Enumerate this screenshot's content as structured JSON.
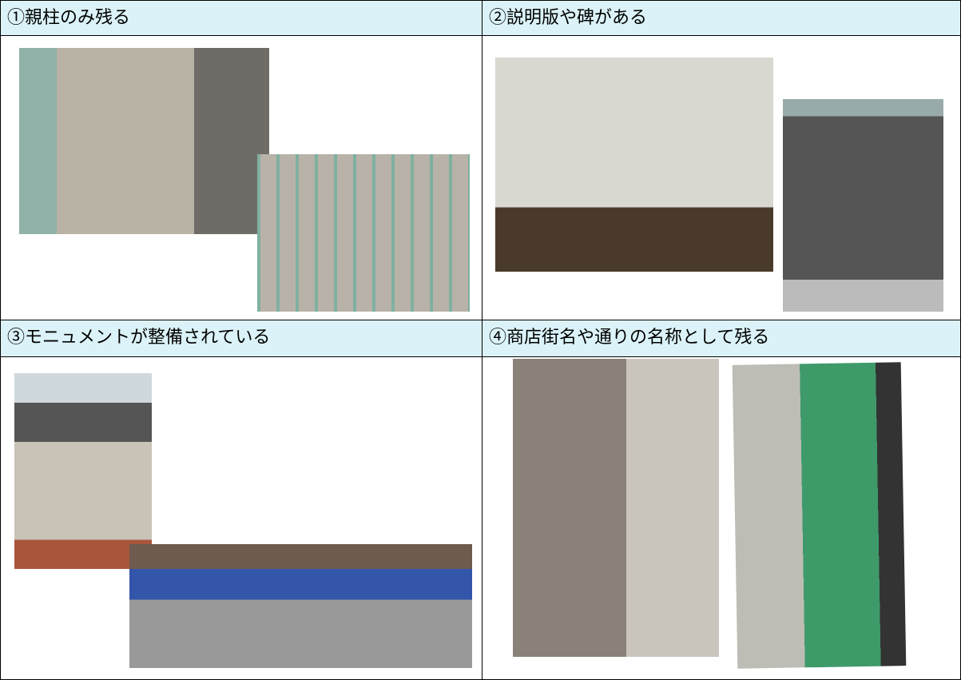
{
  "table": {
    "rows": [
      [
        "①親柱のみ残る",
        "②説明版や碑がある"
      ],
      [
        "③モニュメントが整備されている",
        "④商店街名や通りの名称として残る"
      ]
    ]
  }
}
